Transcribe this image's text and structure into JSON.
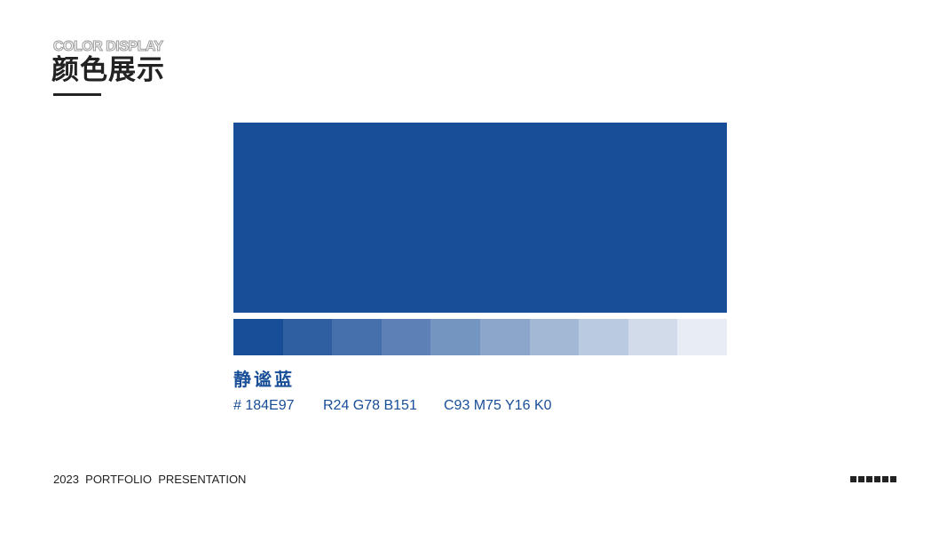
{
  "header": {
    "title_en": "COLOR DISPLAY",
    "title_cn": "颜色展示"
  },
  "colors": {
    "primary": "#184E97",
    "text_dark": "#222222",
    "outline_gray": "#9A9A9A"
  },
  "swatch": {
    "main_color": "#184E97",
    "gradient": [
      "#184E97",
      "#2F5FA1",
      "#4670AB",
      "#5D81B6",
      "#7495C0",
      "#8CA6CB",
      "#A3B8D5",
      "#BACAE0",
      "#D1DBEA",
      "#E8EDF5"
    ]
  },
  "color_info": {
    "name": "静谧蓝",
    "hex": "# 184E97",
    "rgb": "R24 G78 B151",
    "cmyk": "C93 M75 Y16 K0"
  },
  "footer": {
    "text": "2023  PORTFOLIO  PRESENTATION",
    "dot_count": 6
  }
}
